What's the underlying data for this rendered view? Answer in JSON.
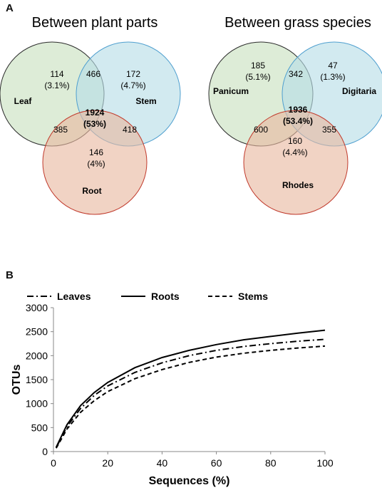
{
  "panels": {
    "a": "A",
    "b": "B"
  },
  "chart_data": [
    {
      "type": "venn",
      "title": "Between plant parts",
      "sets": [
        {
          "name": "Leaf",
          "color": "#c8e1bf",
          "stroke": "#2b2b2b"
        },
        {
          "name": "Stem",
          "color": "#b7dde6",
          "stroke": "#4f9fcf"
        },
        {
          "name": "Root",
          "color": "#e8b89f",
          "stroke": "#c0392b"
        }
      ],
      "regions": [
        {
          "sets": [
            "Leaf"
          ],
          "count": "114",
          "percent": "(3.1%)"
        },
        {
          "sets": [
            "Stem"
          ],
          "count": "172",
          "percent": "(4.7%)"
        },
        {
          "sets": [
            "Root"
          ],
          "count": "146",
          "percent": "(4%)"
        },
        {
          "sets": [
            "Leaf",
            "Stem"
          ],
          "count": "466",
          "percent": ""
        },
        {
          "sets": [
            "Leaf",
            "Root"
          ],
          "count": "385",
          "percent": ""
        },
        {
          "sets": [
            "Stem",
            "Root"
          ],
          "count": "418",
          "percent": ""
        },
        {
          "sets": [
            "Leaf",
            "Stem",
            "Root"
          ],
          "count": "1924",
          "percent": "(53%)"
        }
      ]
    },
    {
      "type": "venn",
      "title": "Between grass species",
      "sets": [
        {
          "name": "Panicum",
          "color": "#c8e1bf",
          "stroke": "#2b2b2b"
        },
        {
          "name": "Digitaria",
          "color": "#b7dde6",
          "stroke": "#4f9fcf"
        },
        {
          "name": "Rhodes",
          "color": "#e8b89f",
          "stroke": "#c0392b"
        }
      ],
      "regions": [
        {
          "sets": [
            "Panicum"
          ],
          "count": "185",
          "percent": "(5.1%)"
        },
        {
          "sets": [
            "Digitaria"
          ],
          "count": "47",
          "percent": "(1.3%)"
        },
        {
          "sets": [
            "Rhodes"
          ],
          "count": "160",
          "percent": "(4.4%)"
        },
        {
          "sets": [
            "Panicum",
            "Digitaria"
          ],
          "count": "342",
          "percent": ""
        },
        {
          "sets": [
            "Panicum",
            "Rhodes"
          ],
          "count": "600",
          "percent": ""
        },
        {
          "sets": [
            "Digitaria",
            "Rhodes"
          ],
          "count": "355",
          "percent": ""
        },
        {
          "sets": [
            "Panicum",
            "Digitaria",
            "Rhodes"
          ],
          "count": "1936",
          "percent": "(53.4%)"
        }
      ]
    },
    {
      "type": "line",
      "title": "",
      "xlabel": "Sequences (%)",
      "ylabel": "OTUs",
      "xlim": [
        0,
        100
      ],
      "ylim": [
        0,
        3000
      ],
      "xticks": [
        "0",
        "20",
        "40",
        "60",
        "80",
        "100"
      ],
      "yticks": [
        "0",
        "500",
        "1000",
        "1500",
        "2000",
        "2500",
        "3000"
      ],
      "grid": false,
      "legend": "top",
      "x": [
        1,
        5,
        10,
        15,
        20,
        30,
        40,
        50,
        60,
        70,
        80,
        90,
        100
      ],
      "series": [
        {
          "name": "Leaves",
          "dash": "dashdot",
          "values": [
            80,
            520,
            900,
            1170,
            1370,
            1650,
            1850,
            2000,
            2110,
            2190,
            2250,
            2300,
            2340
          ]
        },
        {
          "name": "Roots",
          "dash": "solid",
          "values": [
            90,
            560,
            960,
            1230,
            1440,
            1750,
            1960,
            2110,
            2230,
            2330,
            2400,
            2470,
            2530
          ]
        },
        {
          "name": "Stems",
          "dash": "dashed",
          "values": [
            70,
            470,
            820,
            1060,
            1250,
            1520,
            1710,
            1860,
            1970,
            2050,
            2110,
            2160,
            2200
          ]
        }
      ]
    }
  ]
}
